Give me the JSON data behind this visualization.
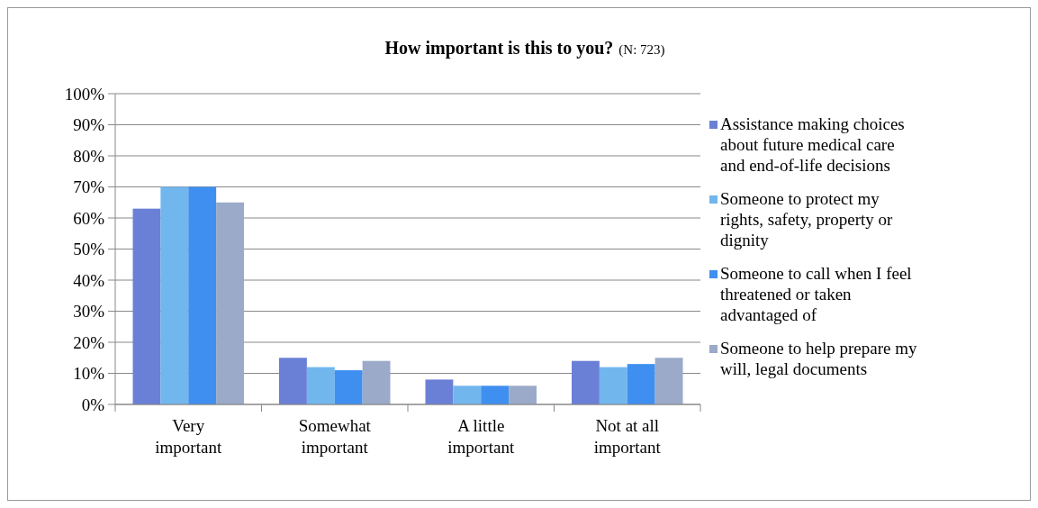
{
  "chart_data": {
    "type": "bar",
    "title": "How important is this to you?",
    "subtitle": "(N: 723)",
    "categories": [
      "Very important",
      "Somewhat important",
      "A little important",
      "Not at all important"
    ],
    "series": [
      {
        "name": "Assistance making choices about future medical care and end-of-life decisions",
        "color": "#6a80d6",
        "values": [
          63,
          15,
          8,
          14
        ]
      },
      {
        "name": "Someone to protect my rights, safety, property or dignity",
        "color": "#72b6ee",
        "values": [
          70,
          12,
          6,
          12
        ]
      },
      {
        "name": "Someone to call when I feel threatened or taken advantaged of",
        "color": "#3f8ff0",
        "values": [
          70,
          11,
          6,
          13
        ]
      },
      {
        "name": "Someone to help prepare my will, legal documents",
        "color": "#9aaac8",
        "values": [
          65,
          14,
          6,
          15
        ]
      }
    ],
    "ylim": [
      0,
      100
    ],
    "yticks": [
      {
        "value": 0,
        "label": "0%"
      },
      {
        "value": 10,
        "label": "10%"
      },
      {
        "value": 20,
        "label": "20%"
      },
      {
        "value": 30,
        "label": "30%"
      },
      {
        "value": 40,
        "label": "40%"
      },
      {
        "value": 50,
        "label": "50%"
      },
      {
        "value": 60,
        "label": "60%"
      },
      {
        "value": 70,
        "label": "70%"
      },
      {
        "value": 80,
        "label": "80%"
      },
      {
        "value": 90,
        "label": "90%"
      },
      {
        "value": 100,
        "label": "100%"
      }
    ],
    "grid": "y",
    "legend": "right"
  }
}
